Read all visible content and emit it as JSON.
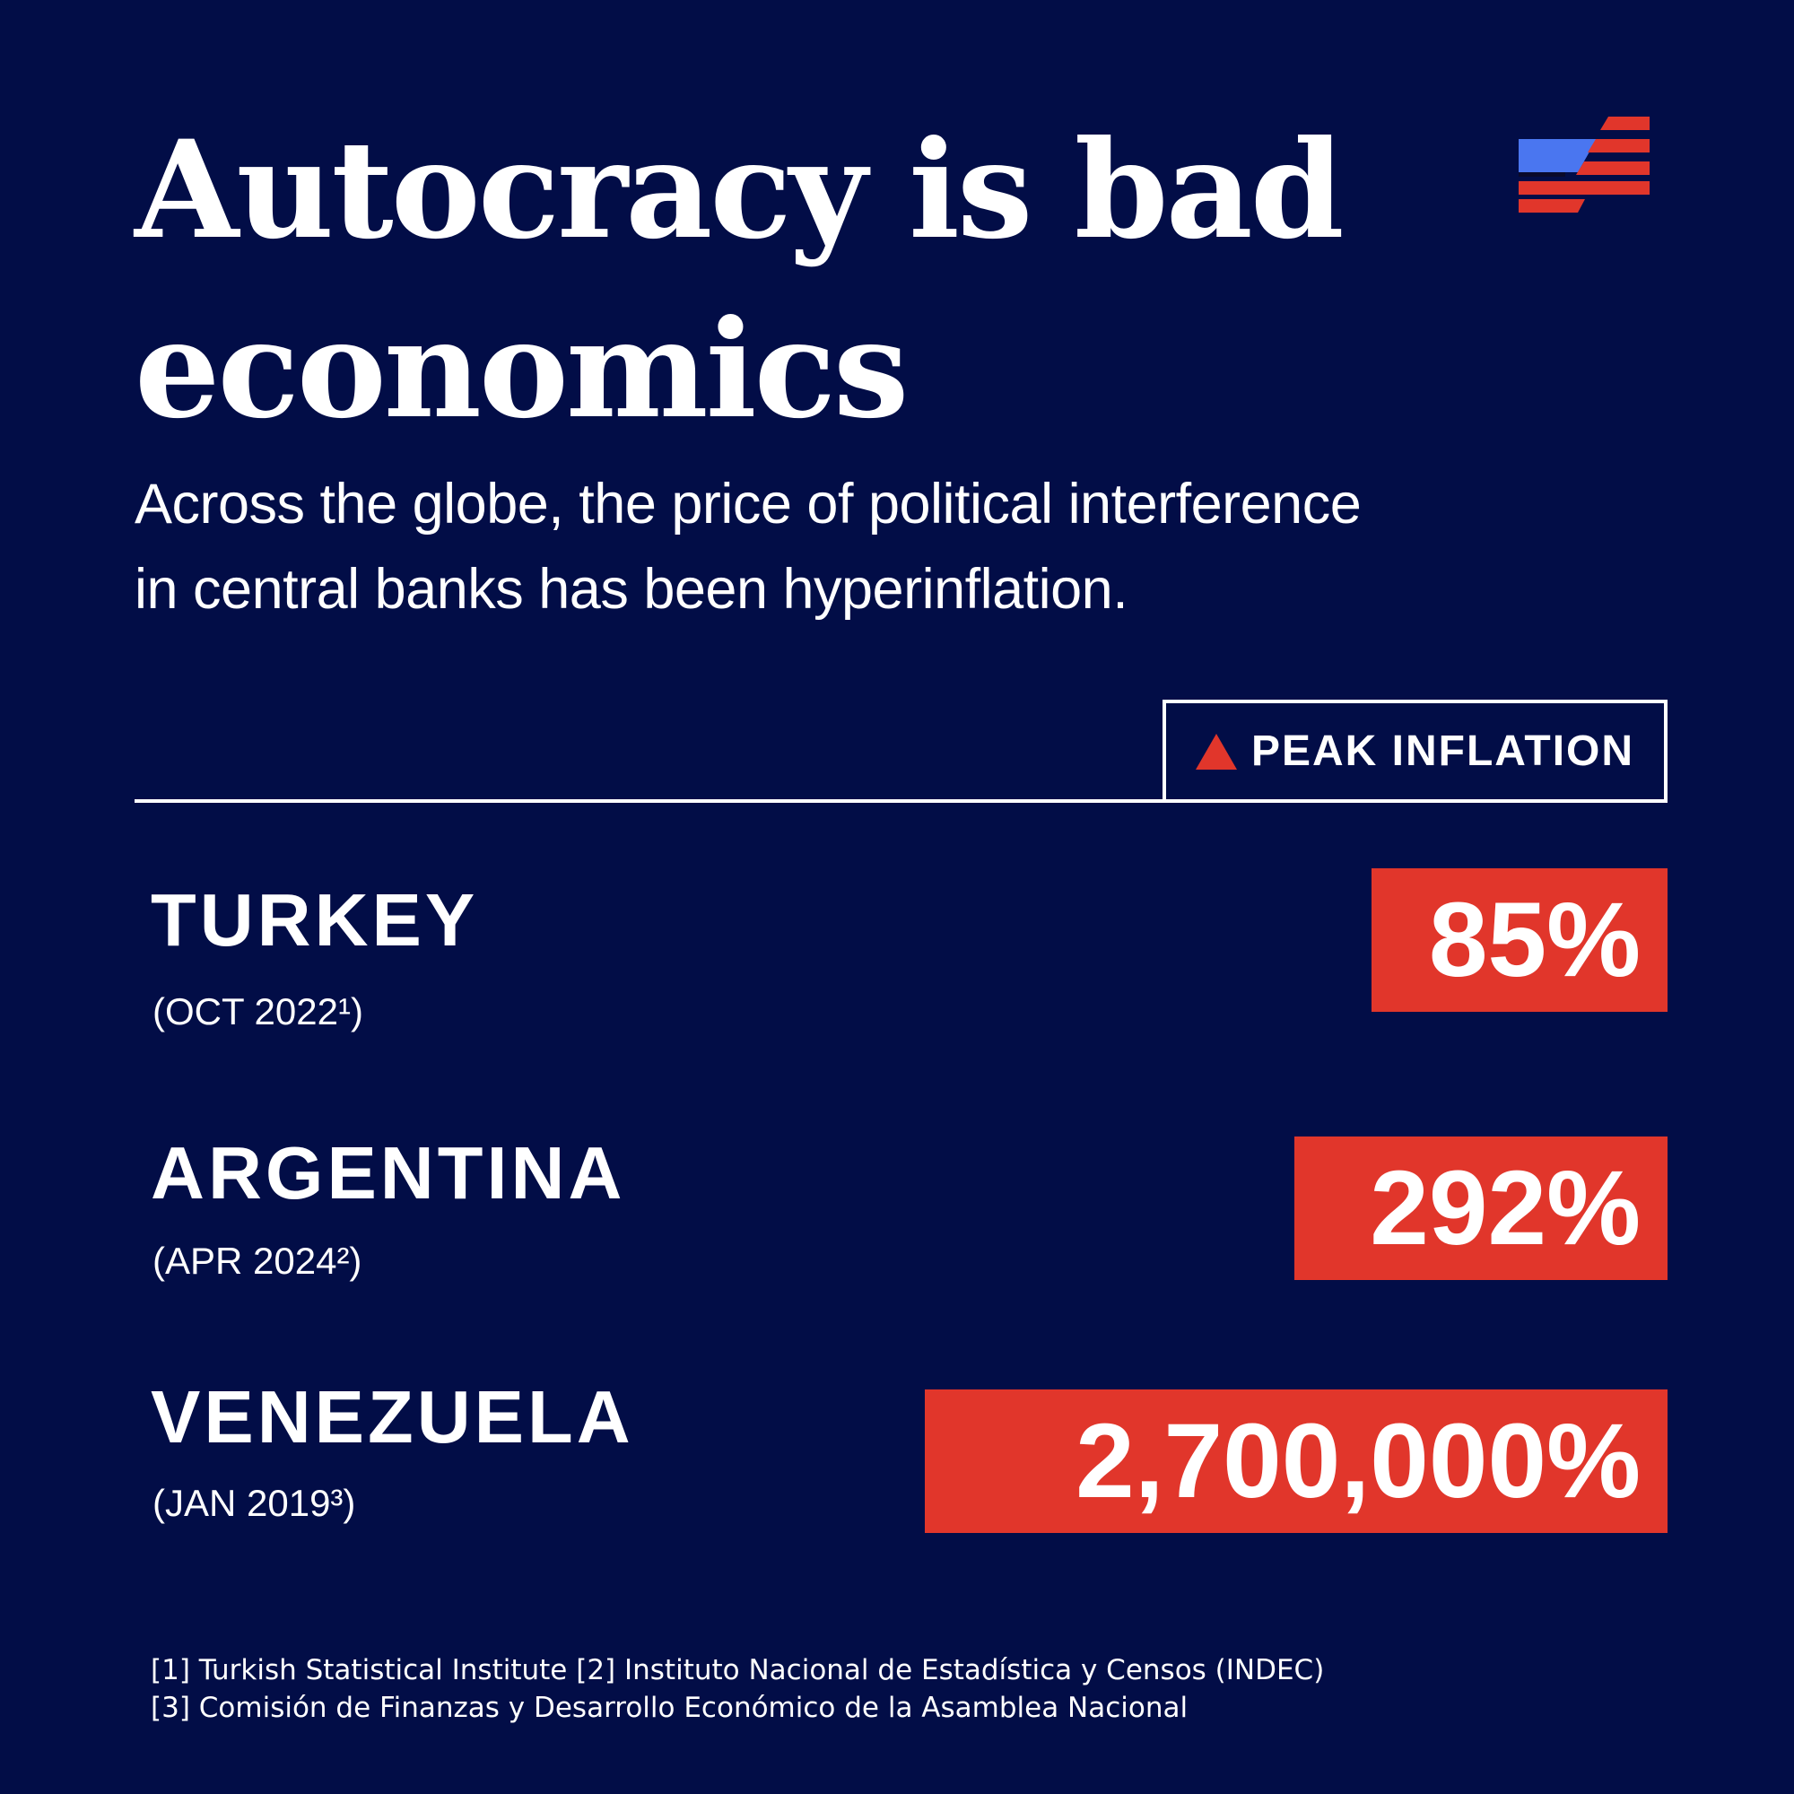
{
  "title": {
    "line1": "Autocracy is bad",
    "line2": "economics"
  },
  "subtitle": {
    "line1": "Across the globe, the price of political interference",
    "line2": "in central banks has been hyperinflation."
  },
  "logo": {
    "icon": "stripes-logo-icon"
  },
  "header": {
    "peak_label": "PEAK INFLATION",
    "peak_icon": "triangle-up-icon"
  },
  "rows": [
    {
      "country": "TURKEY",
      "date": "(OCT 2022¹)",
      "value": "85%"
    },
    {
      "country": "ARGENTINA",
      "date": "(APR 2024²)",
      "value": "292%"
    },
    {
      "country": "VENEZUELA",
      "date": "(JAN 2019³)",
      "value": "2,700,000%"
    }
  ],
  "footnotes": {
    "line1": "[1] Turkish Statistical Institute [2] Instituto Nacional de Estadística y Censos (INDEC)",
    "line2": "[3] Comisión de Finanzas y Desarrollo Económico de la Asamblea Nacional"
  },
  "colors": {
    "background": "#020d47",
    "accent_red": "#e1362b",
    "accent_blue": "#4a76f0",
    "text": "#ffffff"
  }
}
